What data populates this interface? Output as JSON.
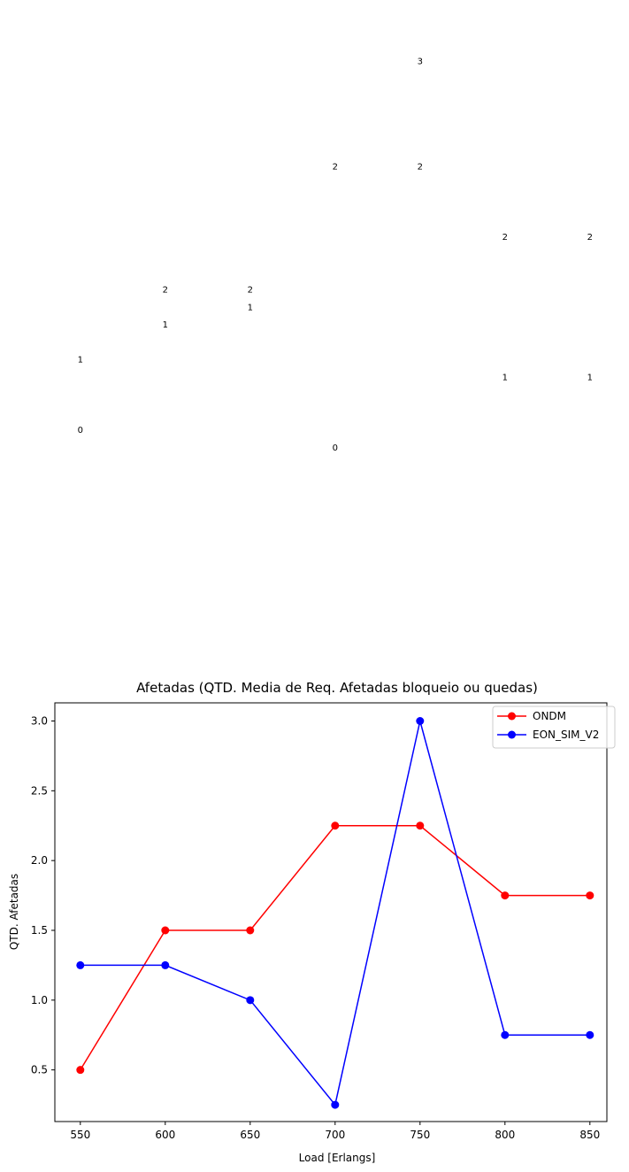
{
  "chart_data": {
    "type": "line",
    "title": "Afetadas (QTD. Media de Req. Afetadas bloqueio ou quedas)",
    "xlabel": "Load [Erlangs]",
    "ylabel": "QTD. Afetadas",
    "x": [
      550,
      600,
      650,
      700,
      750,
      800,
      850
    ],
    "xticks": [
      "550",
      "600",
      "650",
      "700",
      "750",
      "800",
      "850"
    ],
    "yticks": [
      "0.5",
      "1.0",
      "1.5",
      "2.0",
      "2.5",
      "3.0"
    ],
    "ytick_values": [
      0.5,
      1.0,
      1.5,
      2.0,
      2.5,
      3.0
    ],
    "xlim": [
      535,
      860
    ],
    "ylim": [
      0.13,
      3.13
    ],
    "grid": false,
    "legend_position": "top-right",
    "series": [
      {
        "name": "ONDM",
        "color": "#ff0000",
        "values": [
          0.5,
          1.5,
          1.5,
          2.25,
          2.25,
          1.75,
          1.75
        ]
      },
      {
        "name": "EON_SIM_V2",
        "color": "#0000ff",
        "values": [
          1.25,
          1.25,
          1.0,
          0.25,
          3.0,
          0.75,
          0.75
        ]
      }
    ],
    "stray_value_labels": [
      {
        "x": 550,
        "text": "1",
        "ondm": 0.5,
        "eon": 1.25,
        "combo": 1.75
      },
      {
        "x": 550,
        "text": "0",
        "ondm": 0.5,
        "eon": 1.25,
        "combo": 0.75
      },
      {
        "x": 600,
        "text": "2",
        "combo": 2.75
      },
      {
        "x": 600,
        "text": "1",
        "combo": 2.25
      },
      {
        "x": 650,
        "text": "2",
        "combo": 2.75
      },
      {
        "x": 650,
        "text": "1",
        "combo": 2.5
      },
      {
        "x": 700,
        "text": "2",
        "combo": 4.5
      },
      {
        "x": 700,
        "text": "0",
        "combo": 0.5
      },
      {
        "x": 750,
        "text": "3",
        "combo": 6.0
      },
      {
        "x": 750,
        "text": "2",
        "combo": 4.5
      },
      {
        "x": 800,
        "text": "2",
        "combo": 3.5
      },
      {
        "x": 800,
        "text": "1",
        "combo": 1.5
      },
      {
        "x": 850,
        "text": "2",
        "combo": 3.5
      },
      {
        "x": 850,
        "text": "1",
        "combo": 1.5
      }
    ]
  }
}
